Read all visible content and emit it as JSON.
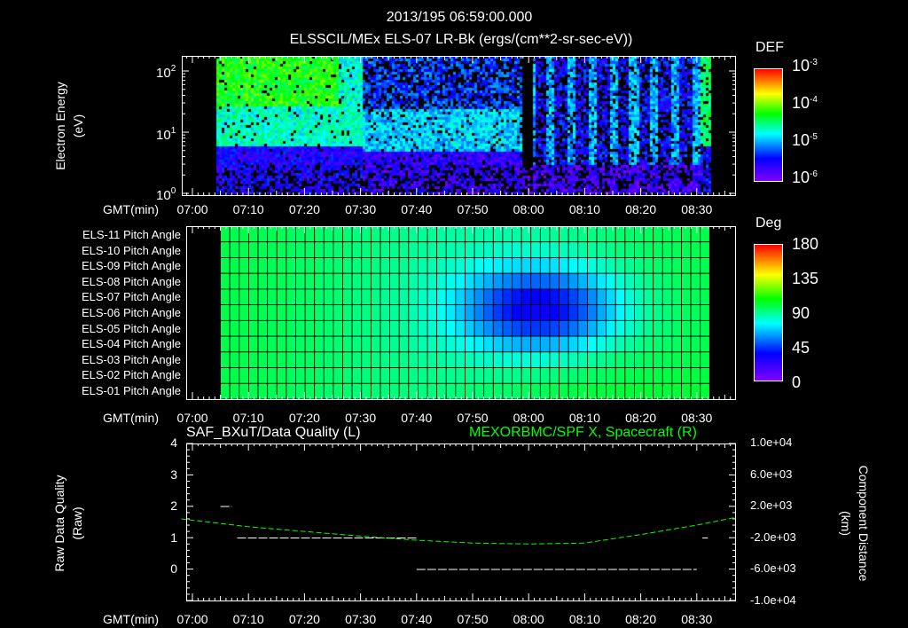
{
  "header": {
    "datetime": "2013/195 06:59:00.000",
    "title": "ELSSCIL/MEx ELS-07 LR-Bk  (ergs/(cm**2-sr-sec-eV))"
  },
  "time_axis": {
    "label": "GMT(min)",
    "ticks": [
      "07:00",
      "07:10",
      "07:20",
      "07:30",
      "07:40",
      "07:50",
      "08:00",
      "08:10",
      "08:20",
      "08:30"
    ]
  },
  "panel1": {
    "ylabel": [
      "Electron Energy",
      "(eV)"
    ],
    "yticks": [
      {
        "base": "10",
        "exp": "2"
      },
      {
        "base": "10",
        "exp": "1"
      },
      {
        "base": "10",
        "exp": "0"
      }
    ],
    "colorbar": {
      "title": "DEF",
      "labels": [
        {
          "base": "10",
          "exp": "-3"
        },
        {
          "base": "10",
          "exp": "-4"
        },
        {
          "base": "10",
          "exp": "-5"
        },
        {
          "base": "10",
          "exp": "-6"
        }
      ]
    }
  },
  "panel2": {
    "rows": [
      "ELS-11 Pitch Angle",
      "ELS-10 Pitch Angle",
      "ELS-09 Pitch Angle",
      "ELS-08 Pitch Angle",
      "ELS-07 Pitch Angle",
      "ELS-06 Pitch Angle",
      "ELS-05 Pitch Angle",
      "ELS-04 Pitch Angle",
      "ELS-03 Pitch Angle",
      "ELS-02 Pitch Angle",
      "ELS-01 Pitch Angle"
    ],
    "colorbar": {
      "title": "Deg",
      "labels": [
        "180",
        "135",
        "90",
        "45",
        "0"
      ]
    }
  },
  "panel3": {
    "title_left": "SAF_BXuT/Data Quality (L)",
    "title_right": "MEXORBMC/SPF X, Spacecraft (R)",
    "ylabel_left": [
      "Raw Data Quality",
      "(Raw)"
    ],
    "ylabel_right": [
      "Component Distance",
      "(km)"
    ],
    "yticks_left": [
      "4",
      "3",
      "2",
      "1",
      "0"
    ],
    "yticks_right": [
      "1.0e+04",
      "6.0e+03",
      "2.0e+03",
      "-2.0e+03",
      "-6.0e+03",
      "-1.0e+04"
    ]
  },
  "colors": {
    "axis": "#ffffff",
    "quality": "#ffffff",
    "distance": "#00ff00",
    "background": "#000000"
  },
  "chart_data": [
    {
      "type": "heatmap",
      "title": "ELSSCIL/MEx ELS-07 LR-Bk (ergs/(cm**2-sr-sec-eV))",
      "xlabel": "GMT(min)",
      "ylabel": "Electron Energy (eV)",
      "xlim": [
        "06:58",
        "08:37"
      ],
      "ylim": [
        1,
        180
      ],
      "yscale": "log",
      "zlabel": "DEF",
      "zlim": [
        1e-06,
        0.001
      ],
      "zscale": "log",
      "regions": [
        {
          "time": [
            "06:58",
            "07:04"
          ],
          "note": "no data"
        },
        {
          "time": [
            "07:04",
            "07:30"
          ],
          "energy_eV": [
            30,
            180
          ],
          "log_def": -4.1
        },
        {
          "time": [
            "07:04",
            "07:30"
          ],
          "energy_eV": [
            6,
            30
          ],
          "log_def": -4.6
        },
        {
          "time": [
            "07:30",
            "07:58"
          ],
          "energy_eV": [
            5,
            25
          ],
          "log_def": -4.8
        },
        {
          "time": [
            "07:58",
            "08:01"
          ],
          "energy_eV": [
            3,
            180
          ],
          "note": "no data"
        },
        {
          "time": [
            "08:01",
            "08:30"
          ],
          "energy_eV": [
            3,
            180
          ],
          "log_def": -5.2
        },
        {
          "time": [
            "08:31",
            "08:37"
          ],
          "energy_eV": [
            6,
            180
          ],
          "log_def": -4.3
        }
      ]
    },
    {
      "type": "heatmap",
      "xlabel": "GMT(min)",
      "zlabel": "Deg",
      "zlim": [
        0,
        180
      ],
      "xlim": [
        "07:05",
        "08:32"
      ],
      "baseline_deg": 100,
      "min_deg": 40,
      "min_time": "08:00",
      "min_rows": [
        "ELS-06",
        "ELS-07"
      ]
    },
    {
      "type": "line",
      "series": [
        {
          "name": "SAF_BXuT/Data Quality (L)",
          "axis": "left",
          "segments": [
            {
              "x": [
                "07:05",
                "07:07"
              ],
              "y": 2
            },
            {
              "x": [
                "07:08",
                "07:40"
              ],
              "y": 1
            },
            {
              "x": [
                "07:40",
                "08:30"
              ],
              "y": 0
            },
            {
              "x": [
                "08:31",
                "08:31"
              ],
              "y": 1
            }
          ]
        },
        {
          "name": "MEXORBMC/SPF X, Spacecraft (R)",
          "axis": "right",
          "unit": "km",
          "x": [
            "06:58",
            "07:10",
            "07:20",
            "07:30",
            "07:40",
            "07:50",
            "08:00",
            "08:10",
            "08:20",
            "08:30",
            "08:37"
          ],
          "y": [
            400,
            -600,
            -1200,
            -1800,
            -2320,
            -2680,
            -2800,
            -2680,
            -1600,
            -400,
            600
          ]
        }
      ],
      "ylim_left": [
        -1,
        4
      ],
      "ylim_right": [
        -10000,
        10000
      ]
    }
  ]
}
